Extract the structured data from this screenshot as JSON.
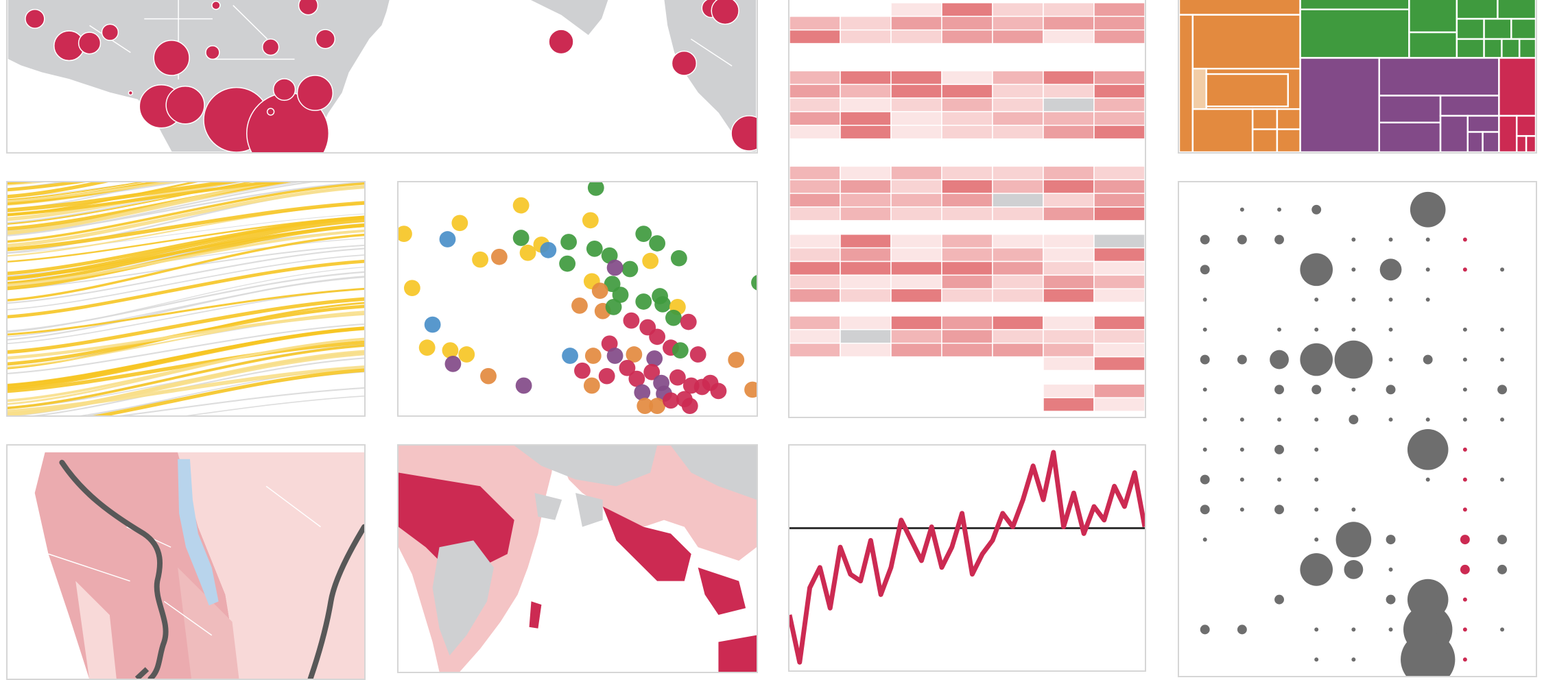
{
  "palette": {
    "crimson": "#cc2a52",
    "land": "#cfd0d2",
    "gold": "#f6c525",
    "green": "#3f9a3e",
    "orange": "#e38a3f",
    "purple": "#824a88",
    "blue": "#4a8fc9",
    "grey_dot": "#6e6e6e",
    "river": "#585858",
    "lake": "#b8d4ec"
  },
  "panels": [
    {
      "name": "bubble-world-map"
    },
    {
      "name": "heatmap-grid"
    },
    {
      "name": "treemap"
    },
    {
      "name": "flow-lines"
    },
    {
      "name": "scatter-plot"
    },
    {
      "name": "dot-matrix"
    },
    {
      "name": "choropleth-region"
    },
    {
      "name": "raster-map"
    },
    {
      "name": "time-series-line"
    }
  ]
}
